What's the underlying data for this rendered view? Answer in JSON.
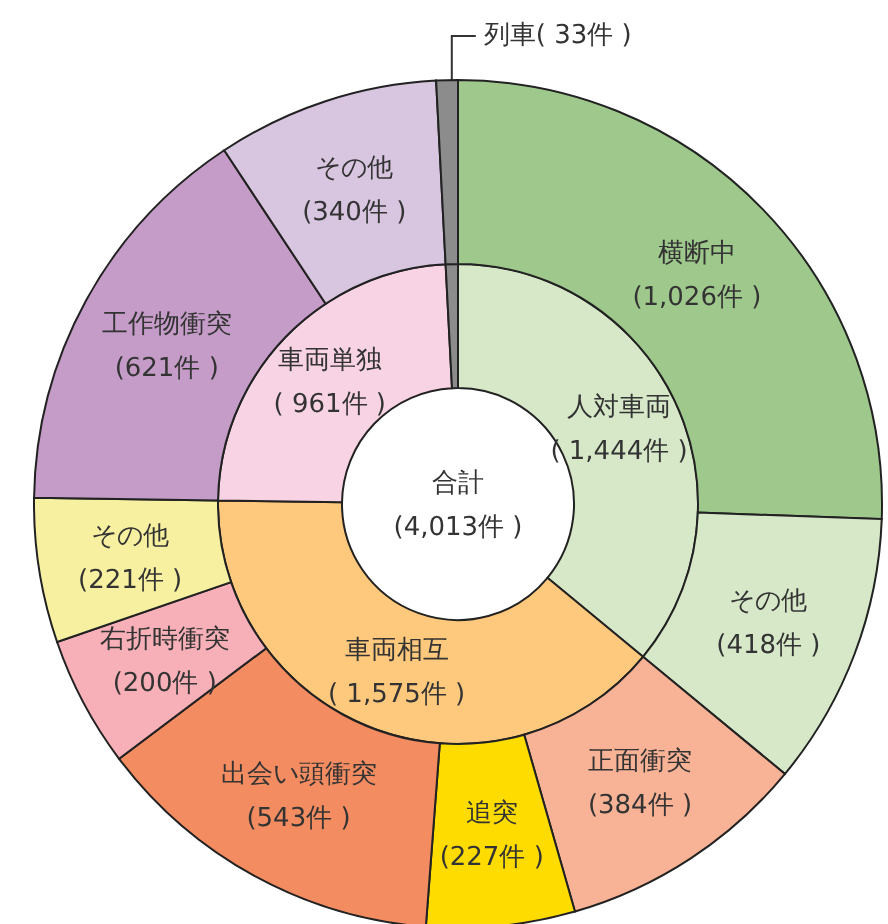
{
  "chart_data": [
    {
      "type": "donut",
      "categories": [
        "人対車両",
        "車両相互",
        "車両単独",
        "列車"
      ],
      "values": [
        1444,
        1575,
        961,
        33
      ],
      "colors": [
        "#d6e8c8",
        "#fec97c",
        "#f8d3e4",
        "#8c8c8c"
      ],
      "value_labels": [
        "( 1,444件 )",
        "( 1,575件 )",
        "( 961件 )",
        "( 33件 )"
      ],
      "annotations": [
        "合計",
        "(4,013件 )"
      ]
    },
    {
      "type": "donut",
      "categories": [
        "横断中",
        "その他",
        "正面衝突",
        "追突",
        "出会い頭衝突",
        "右折時衝突",
        "その他",
        "工作物衝突",
        "その他",
        null
      ],
      "values": [
        1026,
        418,
        384,
        227,
        543,
        200,
        221,
        621,
        340,
        33
      ],
      "colors": [
        "#9fc98c",
        "#d6e8c8",
        "#f8b396",
        "#fedc00",
        "#f38c60",
        "#f7b0b8",
        "#f7f0a0",
        "#c59cc8",
        "#d8c5e0",
        "#8c8c8c"
      ],
      "value_labels": [
        "(1,026件 )",
        "(418件 )",
        "(384件 )",
        "(227件 )",
        "(543件 )",
        "(200件 )",
        "(221件 )",
        "(621件 )",
        "(340件 )",
        null
      ]
    }
  ]
}
